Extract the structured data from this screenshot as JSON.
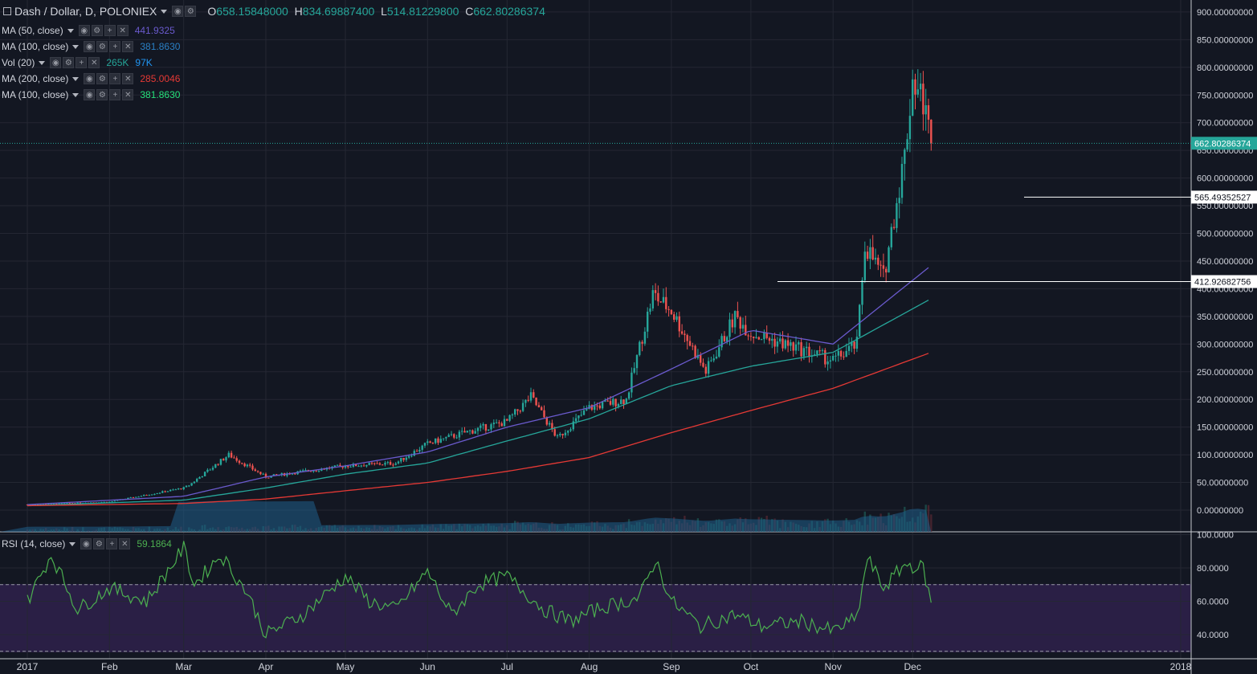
{
  "header": {
    "symbol_title": "Dash / Dollar, D, POLONIEX",
    "ohlc": {
      "o_label": "O",
      "o": "658.15848000",
      "h_label": "H",
      "h": "834.69887400",
      "l_label": "L",
      "l": "514.81229800",
      "c_label": "C",
      "c": "662.80286374"
    }
  },
  "indicators": [
    {
      "label": "MA (50, close)",
      "values": [
        "441.9325"
      ],
      "colors": [
        "#6a5acd"
      ]
    },
    {
      "label": "MA (100, close)",
      "values": [
        "381.8630"
      ],
      "colors": [
        "#2a7fc4"
      ]
    },
    {
      "label": "Vol (20)",
      "values": [
        "265K",
        "97K"
      ],
      "colors": [
        "#26a69a",
        "#2196f3"
      ]
    },
    {
      "label": "MA (200, close)",
      "values": [
        "285.0046"
      ],
      "colors": [
        "#e53935"
      ]
    },
    {
      "label": "MA (100, close)",
      "values": [
        "381.8630"
      ],
      "colors": [
        "#26e07a"
      ]
    }
  ],
  "rsi_legend": {
    "label": "RSI (14, close)",
    "value": "59.1864",
    "color": "#4caf50"
  },
  "price_axis": {
    "ticks": [
      "900.00000000",
      "850.00000000",
      "800.00000000",
      "750.00000000",
      "700.00000000",
      "650.00000000",
      "600.00000000",
      "550.00000000",
      "500.00000000",
      "450.00000000",
      "400.00000000",
      "350.00000000",
      "300.00000000",
      "250.00000000",
      "200.00000000",
      "150.00000000",
      "100.00000000",
      "50.00000000",
      "0.00000000"
    ],
    "current_price_label": "662.80286374",
    "level_labels": [
      "565.49352527",
      "412.92682756"
    ]
  },
  "rsi_axis": {
    "ticks": [
      "100.0000",
      "80.0000",
      "60.0000",
      "40.0000"
    ]
  },
  "time_axis": {
    "ticks": [
      "2017",
      "Feb",
      "Mar",
      "Apr",
      "May",
      "Jun",
      "Jul",
      "Aug",
      "Sep",
      "Oct",
      "Nov",
      "Dec",
      "2018"
    ]
  },
  "colors": {
    "background": "#131722",
    "up": "#26a69a",
    "down": "#ef5350",
    "ma50": "#6a5acd",
    "ma100": "#26a69a",
    "ma200": "#e53935",
    "rsi": "#4caf50",
    "rsi_band": "#2a1f45",
    "volume": "#1f5f8a"
  },
  "chart_data": [
    {
      "type": "candlestick",
      "title": "Dash / Dollar, D, POLONIEX",
      "x_range": [
        "2017-01-01",
        "2017-12-08"
      ],
      "y_range": [
        0,
        900
      ],
      "series": [
        {
          "name": "MA (50, close)",
          "x": [
            "2017-01-01",
            "2017-03-01",
            "2017-04-01",
            "2017-05-01",
            "2017-06-01",
            "2017-07-01",
            "2017-08-01",
            "2017-09-01",
            "2017-10-01",
            "2017-11-01",
            "2017-12-08"
          ],
          "values": [
            10,
            25,
            60,
            80,
            105,
            150,
            185,
            255,
            325,
            300,
            442
          ]
        },
        {
          "name": "MA (100, close)",
          "x": [
            "2017-01-01",
            "2017-03-01",
            "2017-04-01",
            "2017-05-01",
            "2017-06-01",
            "2017-07-01",
            "2017-08-01",
            "2017-09-01",
            "2017-10-01",
            "2017-11-01",
            "2017-12-08"
          ],
          "values": [
            8,
            18,
            40,
            65,
            85,
            125,
            165,
            225,
            260,
            285,
            382
          ]
        },
        {
          "name": "MA (200, close)",
          "x": [
            "2017-01-01",
            "2017-03-01",
            "2017-04-01",
            "2017-05-01",
            "2017-06-01",
            "2017-07-01",
            "2017-08-01",
            "2017-09-01",
            "2017-10-01",
            "2017-11-01",
            "2017-12-08"
          ],
          "values": [
            8,
            12,
            20,
            35,
            50,
            70,
            95,
            140,
            180,
            220,
            285
          ]
        }
      ],
      "price_keypoints": {
        "x": [
          "2017-01-01",
          "2017-02-01",
          "2017-03-01",
          "2017-03-03",
          "2017-03-18",
          "2017-04-01",
          "2017-04-15",
          "2017-05-01",
          "2017-05-20",
          "2017-06-01",
          "2017-06-15",
          "2017-07-01",
          "2017-07-10",
          "2017-07-20",
          "2017-08-01",
          "2017-08-15",
          "2017-08-25",
          "2017-09-01",
          "2017-09-14",
          "2017-09-25",
          "2017-10-01",
          "2017-10-20",
          "2017-11-01",
          "2017-11-10",
          "2017-11-13",
          "2017-11-20",
          "2017-11-25",
          "2017-11-28",
          "2017-12-01",
          "2017-12-05",
          "2017-12-08"
        ],
        "close": [
          10,
          15,
          40,
          45,
          100,
          60,
          70,
          80,
          85,
          120,
          140,
          160,
          205,
          130,
          185,
          200,
          390,
          360,
          250,
          350,
          320,
          290,
          270,
          300,
          480,
          420,
          560,
          640,
          780,
          740,
          663
        ]
      },
      "horizontal_levels": [
        565.49352527,
        412.92682756
      ],
      "last_price": 662.80286374
    },
    {
      "type": "line",
      "title": "RSI (14, close)",
      "x_range": [
        "2017-01-01",
        "2017-12-08"
      ],
      "y_range": [
        30,
        100
      ],
      "bands": [
        30,
        70
      ],
      "series": [
        {
          "name": "RSI (14, close)",
          "x": [
            "2017-01-01",
            "2017-01-10",
            "2017-01-20",
            "2017-02-01",
            "2017-02-15",
            "2017-03-01",
            "2017-03-05",
            "2017-03-15",
            "2017-03-25",
            "2017-04-01",
            "2017-04-15",
            "2017-05-01",
            "2017-05-10",
            "2017-05-20",
            "2017-06-01",
            "2017-06-10",
            "2017-06-20",
            "2017-07-01",
            "2017-07-15",
            "2017-07-25",
            "2017-08-05",
            "2017-08-20",
            "2017-08-26",
            "2017-09-01",
            "2017-09-12",
            "2017-09-25",
            "2017-10-05",
            "2017-10-20",
            "2017-11-01",
            "2017-11-10",
            "2017-11-14",
            "2017-11-20",
            "2017-11-28",
            "2017-12-05",
            "2017-12-08"
          ],
          "values": [
            60,
            88,
            55,
            68,
            60,
            92,
            70,
            88,
            65,
            40,
            52,
            75,
            60,
            55,
            78,
            52,
            70,
            75,
            55,
            48,
            56,
            62,
            85,
            60,
            45,
            52,
            45,
            48,
            42,
            50,
            86,
            68,
            82,
            80,
            59.19
          ]
        }
      ]
    },
    {
      "type": "bar",
      "title": "Vol (20)",
      "note_values": [
        "265K",
        "97K"
      ]
    }
  ]
}
